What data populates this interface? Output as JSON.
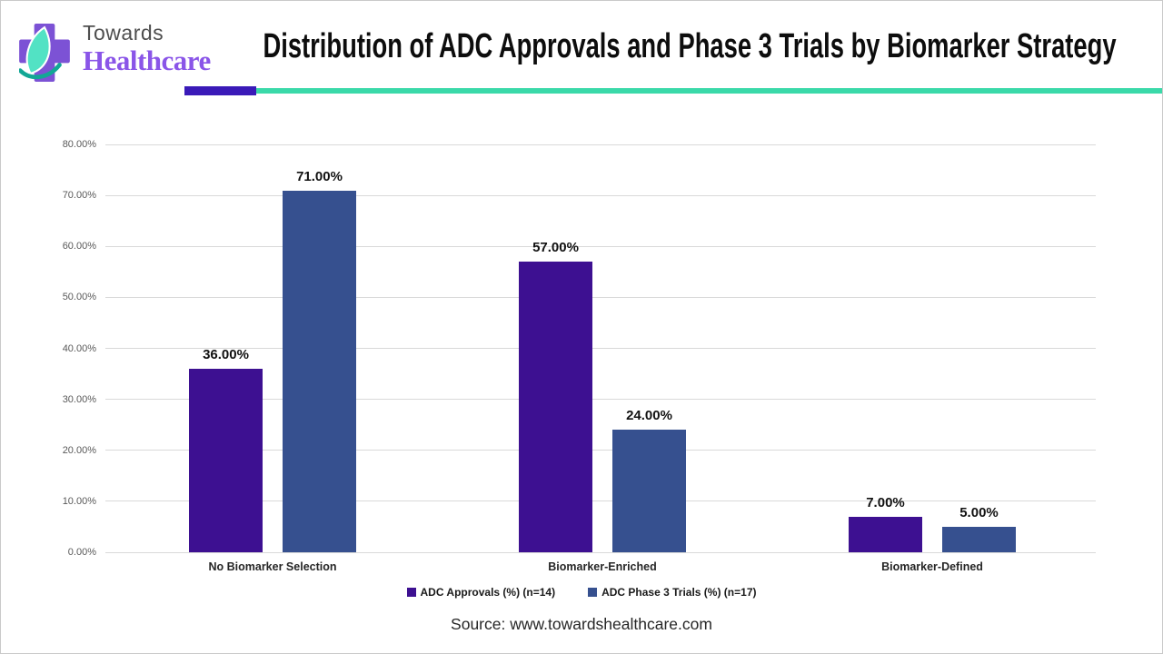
{
  "page": {
    "background": "#ffffff",
    "border_color": "#c9c9c9"
  },
  "brand": {
    "name_line1": "Towards",
    "name_line2": "Healthcare",
    "cross_color": "#7c52d5",
    "leaf_color": "#52e2c4",
    "swoosh_color": "#12a795",
    "name_line1_color": "#4f4f4f",
    "name_line2_color": "#8a55e8"
  },
  "header": {
    "underline_purple": "#3a1ab8",
    "underline_teal": "#3ad9a9"
  },
  "chart_data": {
    "type": "bar",
    "title": "Distribution of ADC Approvals and Phase 3 Trials by Biomarker Strategy",
    "categories": [
      "No Biomarker Selection",
      "Biomarker-Enriched",
      "Biomarker-Defined"
    ],
    "series": [
      {
        "name": "ADC Approvals (%) (n=14)",
        "color": "#3d1091",
        "values": [
          36,
          57,
          7
        ]
      },
      {
        "name": "ADC Phase 3 Trials (%) (n=17)",
        "color": "#36508f",
        "values": [
          71,
          24,
          5
        ]
      }
    ],
    "y_ticks": [
      "0.00%",
      "10.00%",
      "20.00%",
      "30.00%",
      "40.00%",
      "50.00%",
      "60.00%",
      "70.00%",
      "80.00%"
    ],
    "ylim": [
      0,
      80
    ],
    "grid": true,
    "gridline_color": "#d9d9d9",
    "axis_label_color": "#595959",
    "legend_position": "bottom",
    "value_label_suffix": "%"
  },
  "footer": {
    "source": "Source: www.towardshealthcare.com"
  }
}
